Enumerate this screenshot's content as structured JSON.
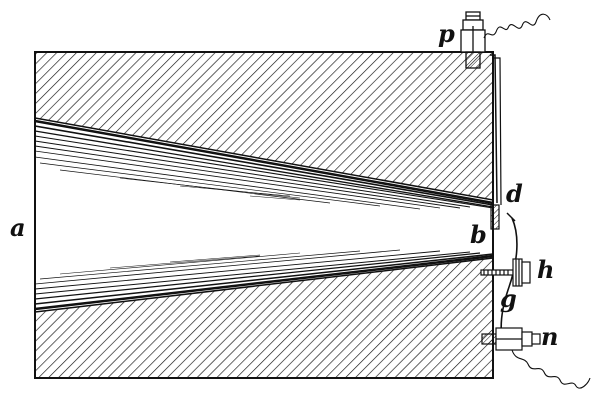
{
  "labels": {
    "a": "a",
    "b": "b",
    "d": "d",
    "g": "g",
    "h": "h",
    "n": "n",
    "p": "p"
  },
  "colors": {
    "ink": "#111111",
    "paper": "#ffffff"
  }
}
